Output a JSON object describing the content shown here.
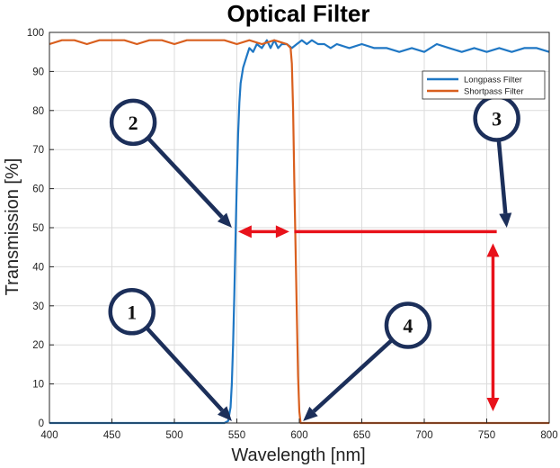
{
  "chart_data": {
    "type": "line",
    "title": "Optical Filter",
    "xlabel": "Wavelength [nm]",
    "ylabel": "Transmission [%]",
    "xlim": [
      400,
      800
    ],
    "ylim": [
      0,
      100
    ],
    "xticks": [
      "400",
      "450",
      "500",
      "550",
      "600",
      "650",
      "700",
      "750",
      "800"
    ],
    "yticks": [
      "0",
      "10",
      "20",
      "30",
      "40",
      "50",
      "60",
      "70",
      "80",
      "90",
      "100"
    ],
    "grid": true,
    "legend_position": "top-right",
    "series": [
      {
        "name": "Longpass Filter",
        "color": "#1f77c4",
        "x": [
          400,
          540,
          543,
          545,
          546,
          547,
          548,
          549,
          550,
          551,
          552,
          553,
          555,
          558,
          560,
          563,
          566,
          570,
          574,
          577,
          580,
          583,
          586,
          590,
          594,
          598,
          602,
          606,
          610,
          615,
          620,
          625,
          630,
          640,
          650,
          660,
          670,
          680,
          690,
          700,
          710,
          720,
          730,
          740,
          750,
          760,
          770,
          780,
          790,
          800
        ],
        "y": [
          0,
          0,
          0.5,
          4,
          10,
          20,
          33,
          48,
          62,
          74,
          82,
          87,
          91,
          94,
          96,
          95,
          97,
          96,
          98,
          96,
          98,
          96,
          97,
          97,
          96,
          97,
          98,
          97,
          98,
          97,
          97,
          96,
          97,
          96,
          97,
          96,
          96,
          95,
          96,
          95,
          97,
          96,
          95,
          96,
          95,
          96,
          95,
          96,
          96,
          95
        ]
      },
      {
        "name": "Shortpass Filter",
        "color": "#d95f1e",
        "x": [
          400,
          410,
          420,
          430,
          440,
          450,
          460,
          470,
          480,
          490,
          500,
          510,
          520,
          530,
          540,
          550,
          560,
          570,
          580,
          590,
          593,
          594,
          595,
          596,
          597,
          598,
          599,
          600,
          601,
          800
        ],
        "y": [
          97,
          98,
          98,
          97,
          98,
          98,
          98,
          97,
          98,
          98,
          97,
          98,
          98,
          98,
          98,
          97,
          98,
          97,
          98,
          97,
          96,
          92,
          80,
          62,
          45,
          28,
          12,
          3,
          0,
          0
        ]
      }
    ],
    "annotations": [
      {
        "label": "1",
        "circle_x": 466,
        "circle_y": 28.5,
        "arrow_x": 546,
        "arrow_y": 0.5
      },
      {
        "label": "2",
        "circle_x": 467,
        "circle_y": 77,
        "arrow_x": 546,
        "arrow_y": 50
      },
      {
        "label": "3",
        "circle_x": 758,
        "circle_y": 78,
        "arrow_x": 766,
        "arrow_y": 50
      },
      {
        "label": "4",
        "circle_x": 687,
        "circle_y": 25,
        "arrow_x": 603,
        "arrow_y": 0.5
      }
    ],
    "red_guides": [
      {
        "kind": "double-arrow",
        "x1": 551,
        "y1": 49,
        "x2": 592,
        "y2": 49
      },
      {
        "kind": "line",
        "x1": 596,
        "y1": 49,
        "x2": 758,
        "y2": 49
      },
      {
        "kind": "double-arrow",
        "x1": 755,
        "y1": 46,
        "x2": 755,
        "y2": 3
      }
    ],
    "colors": {
      "axis": "#262626",
      "grid": "#dcdcdc",
      "annotation_navy": "#1c2f5a",
      "guide_red": "#e8121b"
    }
  }
}
